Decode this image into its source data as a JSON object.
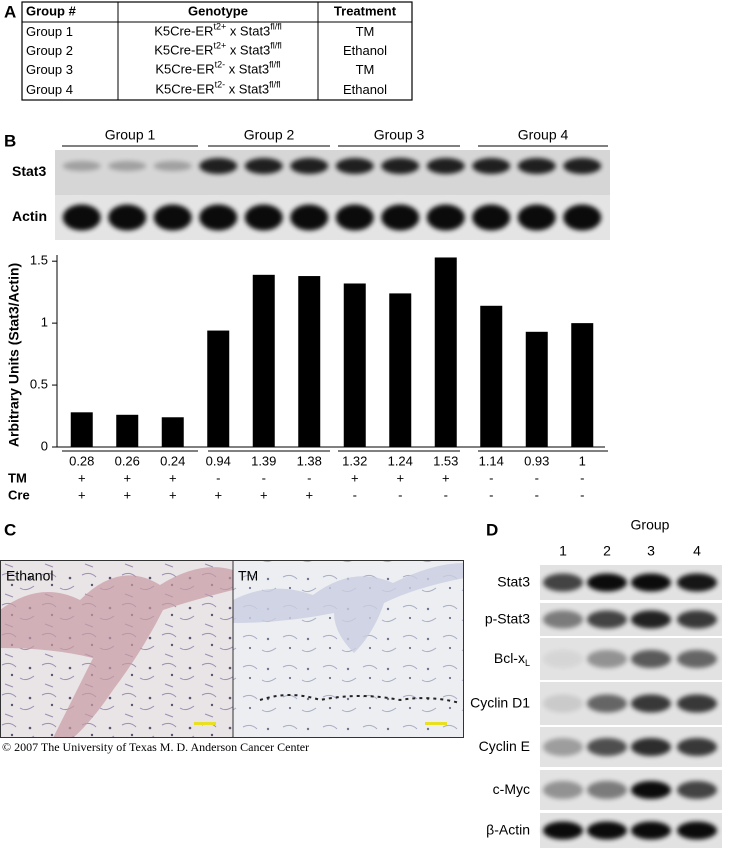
{
  "panel_a": {
    "label": "A",
    "table": {
      "header": [
        "Group #",
        "Genotype",
        "Treatment"
      ],
      "rows": [
        [
          "Group 1",
          [
            "K5Cre-ER",
            "t2+",
            " x Stat3",
            "fl/fl"
          ],
          "TM"
        ],
        [
          "Group 2",
          [
            "K5Cre-ER",
            "t2+",
            " x Stat3",
            "fl/fl"
          ],
          "Ethanol"
        ],
        [
          "Group 3",
          [
            "K5Cre-ER",
            "t2-",
            " x Stat3",
            "fl/fl"
          ],
          "TM"
        ],
        [
          "Group 4",
          [
            "K5Cre-ER",
            "t2-",
            " x Stat3",
            "fl/fl"
          ],
          "Ethanol"
        ]
      ]
    }
  },
  "panel_b": {
    "label": "B",
    "groups": [
      "Group 1",
      "Group 2",
      "Group 3",
      "Group 4"
    ],
    "blots": [
      "Stat3",
      "Actin"
    ]
  },
  "chart_data": {
    "type": "bar",
    "y_label": "Arbitrary Units (Stat3/Actin)",
    "values": [
      0.28,
      0.26,
      0.24,
      0.94,
      1.39,
      1.38,
      1.32,
      1.24,
      1.53,
      1.14,
      0.93,
      1
    ],
    "color": "#000000",
    "ylim": [
      0,
      1.55
    ],
    "yticks": [
      0,
      0.5,
      1,
      1.5
    ],
    "rows": [
      {
        "label": "TM",
        "values": [
          "+",
          "+",
          "+",
          "-",
          "-",
          "-",
          "+",
          "+",
          "+",
          "-",
          "-",
          "-"
        ]
      },
      {
        "label": "Cre",
        "values": [
          "+",
          "+",
          "+",
          "+",
          "+",
          "+",
          "-",
          "-",
          "-",
          "-",
          "-",
          "-"
        ]
      }
    ]
  },
  "panel_c": {
    "label": "C",
    "images": [
      "Ethanol",
      "TM"
    ],
    "copyright": "© 2007 The University of Texas M. D. Anderson Cancer Center"
  },
  "panel_d": {
    "label": "D",
    "title": "Group",
    "lanes": [
      "1",
      "2",
      "3",
      "4"
    ],
    "rows": [
      [
        "Stat3"
      ],
      [
        "p-Stat3"
      ],
      [
        "Bcl-x",
        "L"
      ],
      [
        "Cyclin D1"
      ],
      [
        "Cyclin E"
      ],
      [
        "c-Myc"
      ],
      [
        "β-Actin"
      ]
    ]
  }
}
